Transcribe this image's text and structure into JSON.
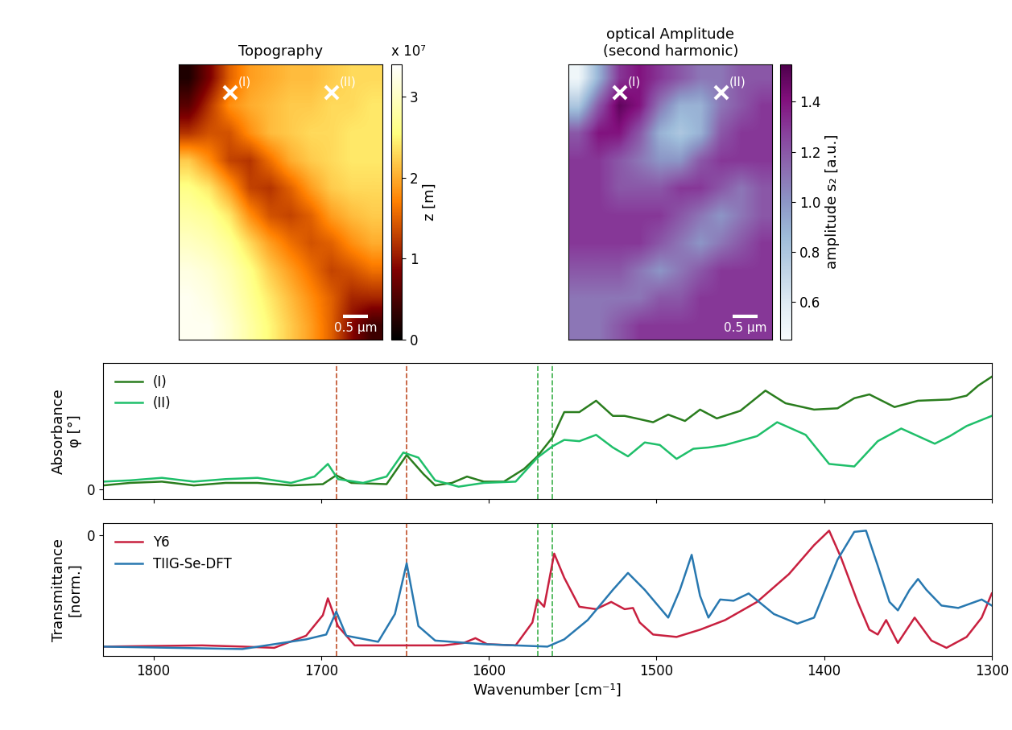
{
  "chart_data": [
    {
      "type": "heatmap",
      "title": "Topography",
      "width_um": 4.0,
      "height_um": 5.4,
      "cells": [
        [
          0.2,
          0.8,
          1.5,
          1.9,
          2.0,
          2.1,
          2.1,
          2.2,
          2.3,
          2.3
        ],
        [
          0.6,
          1.2,
          1.8,
          2.0,
          2.1,
          2.2,
          2.2,
          2.3,
          2.3,
          2.4
        ],
        [
          1.2,
          1.4,
          1.4,
          1.8,
          2.1,
          2.2,
          2.3,
          2.3,
          2.4,
          2.4
        ],
        [
          2.2,
          1.8,
          1.3,
          1.2,
          1.6,
          2.0,
          2.2,
          2.3,
          2.4,
          2.4
        ],
        [
          2.6,
          2.4,
          1.9,
          1.3,
          1.2,
          1.5,
          1.9,
          2.2,
          2.3,
          2.3
        ],
        [
          2.8,
          2.7,
          2.4,
          1.8,
          1.4,
          1.3,
          1.5,
          1.9,
          2.1,
          2.2
        ],
        [
          3.0,
          2.9,
          2.7,
          2.3,
          1.9,
          1.6,
          1.4,
          1.5,
          1.8,
          2.0
        ],
        [
          3.2,
          3.1,
          2.9,
          2.6,
          2.2,
          1.9,
          1.6,
          1.3,
          1.4,
          1.6
        ],
        [
          3.3,
          3.2,
          3.0,
          2.7,
          2.4,
          2.1,
          1.8,
          1.5,
          1.1,
          1.1
        ],
        [
          3.3,
          3.3,
          3.1,
          2.8,
          2.5,
          2.2,
          1.9,
          1.5,
          0.9,
          0.4
        ]
      ],
      "colorbar": {
        "range": [
          0,
          3.4
        ],
        "ticks": [
          0,
          1,
          2,
          3
        ],
        "label": "z [m]",
        "multiplier_label": "x 10⁷"
      },
      "markers": [
        {
          "label": "(I)",
          "x": 1.0,
          "y": 0.55
        },
        {
          "label": "(II)",
          "x": 3.0,
          "y": 0.55
        }
      ],
      "scale_bar": {
        "length": 0.5,
        "label": "0.5 µm"
      },
      "tick_labels": false
    },
    {
      "type": "heatmap",
      "title": "optical Amplitude\n(second harmonic)",
      "width_um": 4.0,
      "height_um": 5.4,
      "cells": [
        [
          0.5,
          0.9,
          1.3,
          1.4,
          1.3,
          1.2,
          1.1,
          1.1,
          1.2,
          1.2
        ],
        [
          0.8,
          1.2,
          1.5,
          1.4,
          1.1,
          0.9,
          0.9,
          1.1,
          1.2,
          1.3
        ],
        [
          1.2,
          1.4,
          1.4,
          1.2,
          0.9,
          0.8,
          0.9,
          1.2,
          1.3,
          1.3
        ],
        [
          1.3,
          1.3,
          1.2,
          1.1,
          1.0,
          1.0,
          1.2,
          1.3,
          1.3,
          1.3
        ],
        [
          1.3,
          1.3,
          1.2,
          1.2,
          1.2,
          1.3,
          1.3,
          1.2,
          1.1,
          1.2
        ],
        [
          1.3,
          1.3,
          1.3,
          1.3,
          1.3,
          1.2,
          1.1,
          1.0,
          1.1,
          1.2
        ],
        [
          1.3,
          1.3,
          1.3,
          1.3,
          1.2,
          1.1,
          1.0,
          1.1,
          1.2,
          1.3
        ],
        [
          1.2,
          1.2,
          1.2,
          1.1,
          1.0,
          1.1,
          1.2,
          1.3,
          1.3,
          1.3
        ],
        [
          1.1,
          1.1,
          1.1,
          1.1,
          1.2,
          1.2,
          1.3,
          1.3,
          1.3,
          1.3
        ],
        [
          1.1,
          1.1,
          1.2,
          1.3,
          1.3,
          1.3,
          1.3,
          1.3,
          1.3,
          1.3
        ]
      ],
      "colorbar": {
        "range": [
          0.45,
          1.55
        ],
        "ticks": [
          0.6,
          0.8,
          1.0,
          1.2,
          1.4
        ],
        "label": "amplitude s₂ [a.u.]"
      },
      "markers": [
        {
          "label": "(I)",
          "x": 1.0,
          "y": 0.55
        },
        {
          "label": "(II)",
          "x": 3.0,
          "y": 0.55
        }
      ],
      "scale_bar": {
        "length": 0.5,
        "label": "0.5 µm"
      },
      "tick_labels": false
    },
    {
      "type": "line",
      "y_label": "Absorbance\nφ [°]",
      "xlim": [
        1830,
        1300
      ],
      "xticks": [
        1800,
        1700,
        1600,
        1500,
        1400,
        1300
      ],
      "ylim": [
        -0.8,
        10
      ],
      "yticks": [
        0
      ],
      "legend": "upper left",
      "tick_labels": "y",
      "reference_lines": [
        {
          "x": 1691,
          "color": "#c0502a"
        },
        {
          "x": 1649,
          "color": "#c0502a"
        },
        {
          "x": 1571,
          "color": "#3cb04a"
        },
        {
          "x": 1562,
          "color": "#3cb04a"
        }
      ],
      "series": [
        {
          "name": "(I)",
          "color": "#2a7d1e",
          "x": [
            1830,
            1814,
            1795,
            1776,
            1757,
            1738,
            1718,
            1699,
            1691,
            1682,
            1661,
            1649,
            1639,
            1632,
            1622,
            1613,
            1603,
            1591,
            1579,
            1571,
            1562,
            1555,
            1546,
            1536,
            1526,
            1519,
            1512,
            1502,
            1493,
            1483,
            1474,
            1464,
            1450,
            1435,
            1423,
            1406,
            1392,
            1382,
            1373,
            1358,
            1344,
            1325,
            1315,
            1308,
            1300
          ],
          "values": [
            0.3,
            0.5,
            0.6,
            0.3,
            0.5,
            0.5,
            0.3,
            0.4,
            1.1,
            0.5,
            0.4,
            2.7,
            1.2,
            0.3,
            0.5,
            1.0,
            0.6,
            0.6,
            1.6,
            2.6,
            4.1,
            6.1,
            6.1,
            7.0,
            5.8,
            5.8,
            5.6,
            5.3,
            5.9,
            5.4,
            6.3,
            5.6,
            6.2,
            7.8,
            6.8,
            6.3,
            6.4,
            7.2,
            7.5,
            6.5,
            7.0,
            7.1,
            7.4,
            8.2,
            8.9
          ]
        },
        {
          "name": "(II)",
          "color": "#1fbf6a",
          "x": [
            1830,
            1814,
            1795,
            1776,
            1757,
            1738,
            1718,
            1704,
            1696,
            1690,
            1675,
            1661,
            1651,
            1642,
            1632,
            1618,
            1603,
            1584,
            1571,
            1562,
            1555,
            1546,
            1536,
            1526,
            1517,
            1507,
            1498,
            1488,
            1478,
            1469,
            1459,
            1440,
            1428,
            1411,
            1397,
            1382,
            1368,
            1354,
            1344,
            1334,
            1325,
            1315,
            1300
          ],
          "values": [
            0.6,
            0.7,
            0.9,
            0.6,
            0.8,
            0.9,
            0.5,
            1.0,
            2.0,
            0.8,
            0.5,
            1.0,
            2.9,
            2.5,
            0.7,
            0.2,
            0.5,
            0.6,
            2.5,
            3.4,
            3.9,
            3.8,
            4.3,
            3.3,
            2.6,
            3.7,
            3.5,
            2.4,
            3.2,
            3.3,
            3.5,
            4.2,
            5.3,
            4.3,
            2.0,
            1.8,
            3.8,
            4.8,
            4.2,
            3.6,
            4.2,
            5.0,
            5.8
          ]
        }
      ]
    },
    {
      "type": "line",
      "y_label": "Transmittance\n[norm.]",
      "x_label": "Wavenumber [cm⁻¹]",
      "xlim": [
        1830,
        1300
      ],
      "xticks": [
        1800,
        1700,
        1600,
        1500,
        1400,
        1300
      ],
      "ylim": [
        -10,
        1
      ],
      "yticks": [
        0
      ],
      "legend": "upper left",
      "reference_lines": [
        {
          "x": 1691,
          "color": "#c0502a"
        },
        {
          "x": 1649,
          "color": "#c0502a"
        },
        {
          "x": 1571,
          "color": "#3cb04a"
        },
        {
          "x": 1562,
          "color": "#3cb04a"
        }
      ],
      "series": [
        {
          "name": "Y6",
          "color": "#c8203f",
          "x": [
            1830,
            1771,
            1747,
            1728,
            1709,
            1699,
            1696,
            1690,
            1680,
            1627,
            1615,
            1608,
            1601,
            1584,
            1574,
            1571,
            1567,
            1561,
            1555,
            1546,
            1536,
            1527,
            1519,
            1514,
            1510,
            1502,
            1488,
            1474,
            1459,
            1440,
            1421,
            1406,
            1397,
            1390,
            1380,
            1373,
            1368,
            1363,
            1356,
            1346,
            1336,
            1327,
            1315,
            1306,
            1300
          ],
          "values": [
            -9.2,
            -9.1,
            -9.2,
            -9.3,
            -8.3,
            -6.6,
            -5.2,
            -7.5,
            -9.1,
            -9.1,
            -8.9,
            -8.5,
            -9.0,
            -9.1,
            -7.2,
            -5.3,
            -5.9,
            -1.5,
            -3.5,
            -5.9,
            -6.1,
            -5.5,
            -6.1,
            -6.0,
            -7.2,
            -8.2,
            -8.4,
            -7.8,
            -7.0,
            -5.5,
            -3.2,
            -0.8,
            0.4,
            -1.8,
            -5.5,
            -7.8,
            -8.2,
            -7.0,
            -8.9,
            -6.8,
            -8.7,
            -9.3,
            -8.4,
            -6.8,
            -4.8
          ]
        },
        {
          "name": "TIIG-Se-DFT",
          "color": "#2878b0",
          "x": [
            1830,
            1747,
            1709,
            1697,
            1691,
            1685,
            1666,
            1656,
            1649,
            1642,
            1632,
            1603,
            1565,
            1555,
            1541,
            1526,
            1517,
            1507,
            1493,
            1486,
            1479,
            1474,
            1469,
            1462,
            1454,
            1445,
            1430,
            1416,
            1406,
            1392,
            1382,
            1375,
            1368,
            1361,
            1356,
            1349,
            1344,
            1339,
            1330,
            1320,
            1310,
            1306,
            1300
          ],
          "values": [
            -9.2,
            -9.4,
            -8.6,
            -8.2,
            -6.3,
            -8.3,
            -8.8,
            -6.5,
            -2.3,
            -7.5,
            -8.7,
            -9.0,
            -9.2,
            -8.6,
            -7.0,
            -4.5,
            -3.1,
            -4.5,
            -6.8,
            -4.5,
            -1.6,
            -5.0,
            -6.8,
            -5.3,
            -5.4,
            -4.8,
            -6.5,
            -7.3,
            -6.8,
            -2.0,
            0.3,
            0.4,
            -2.5,
            -5.5,
            -6.2,
            -4.5,
            -3.6,
            -4.5,
            -5.8,
            -6.0,
            -5.5,
            -5.3,
            -5.8
          ]
        }
      ]
    }
  ]
}
